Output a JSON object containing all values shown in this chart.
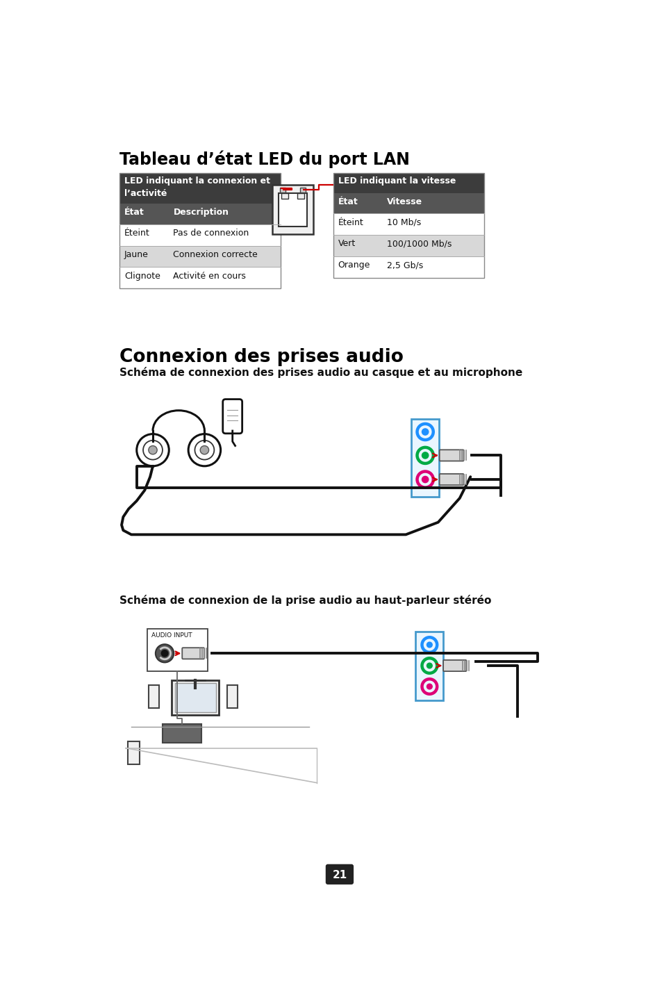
{
  "title1": "Tableau d’état LED du port LAN",
  "table1_header_left": "LED indiquant la connexion et\nl’activité",
  "table1_col1_header": "État",
  "table1_col2_header": "Description",
  "table1_rows": [
    [
      "Éteint",
      "Pas de connexion"
    ],
    [
      "Jaune",
      "Connexion correcte"
    ],
    [
      "Clignote",
      "Activité en cours"
    ]
  ],
  "table2_header": "LED indiquant la vitesse",
  "table2_col1_header": "État",
  "table2_col2_header": "Vitesse",
  "table2_rows": [
    [
      "Éteint",
      "10 Mb/s"
    ],
    [
      "Vert",
      "100/1000 Mb/s"
    ],
    [
      "Orange",
      "2,5 Gb/s"
    ]
  ],
  "title2": "Connexion des prises audio",
  "subtitle2": "Schéma de connexion des prises audio au casque et au microphone",
  "subtitle3": "Schéma de connexion de la prise audio au haut-parleur stéréo",
  "audio_input_label": "AUDIO INPUT",
  "page_number": "21",
  "bg_color": "#ffffff",
  "header_dark_color": "#3c3c3c",
  "subheader_color": "#555555",
  "row_alt_color": "#d8d8d8",
  "row_white_color": "#ffffff",
  "red_color": "#cc0000",
  "blue_color": "#1e90ff",
  "green_color": "#00aa44",
  "pink_color": "#dd0077"
}
